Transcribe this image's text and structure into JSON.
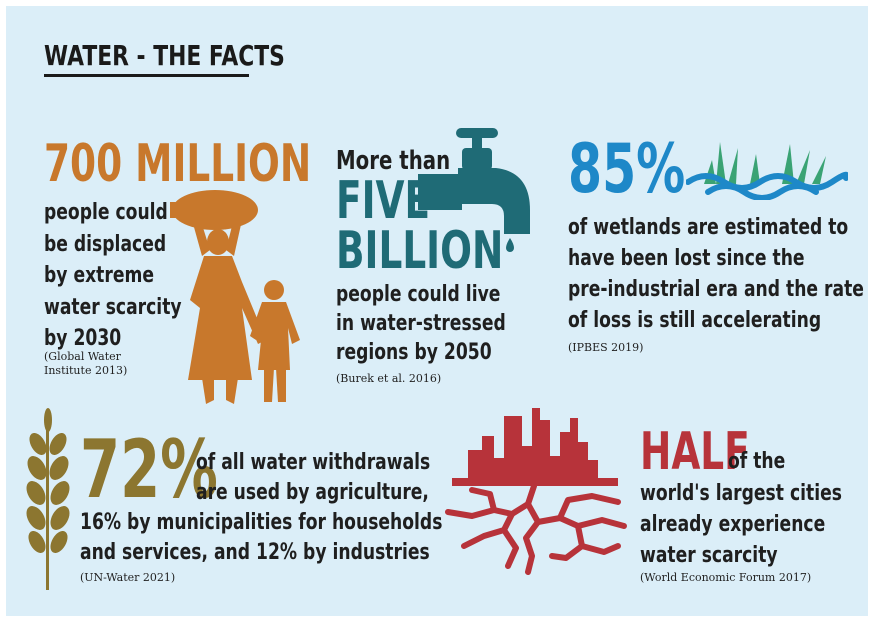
{
  "title": "WATER - THE FACTS",
  "colors": {
    "background": "#dbeef8",
    "orange": "#c8782c",
    "teal": "#1f6b76",
    "blue": "#1e88c8",
    "olive": "#8c7630",
    "red": "#b7333a",
    "text": "#1f1f1f"
  },
  "facts": [
    {
      "headline": "700 MILLION",
      "body": [
        "people could",
        "be displaced",
        "by extreme",
        "water scarcity",
        "by 2030"
      ],
      "source": [
        "(Global Water",
        "Institute 2013)"
      ],
      "icon": "woman-and-child-carrying-water-icon"
    },
    {
      "intro": "More than",
      "headline": [
        "FIVE",
        "BILLION"
      ],
      "body": [
        "people could live",
        "in water-stressed",
        "regions by 2050"
      ],
      "source": "(Burek et al. 2016)",
      "icon": "dripping-tap-icon"
    },
    {
      "headline": "85%",
      "body": [
        "of wetlands are estimated to",
        "have been lost since the",
        "pre-industrial era and the rate",
        "of loss is still accelerating"
      ],
      "source": "(IPBES 2019)",
      "icon": "wetland-grass-and-water-icon"
    },
    {
      "headline": "72%",
      "body": [
        "of all water withdrawals",
        "are used by agriculture,",
        "16% by municipalities for households",
        "and services, and 12% by industries"
      ],
      "source": "(UN-Water 2021)",
      "icon": "wheat-ear-icon"
    },
    {
      "headline": "HALF",
      "body": [
        "of the",
        "world's largest cities",
        "already experience",
        "water scarcity"
      ],
      "source": "(World Economic Forum 2017)",
      "icon": "city-on-cracked-earth-icon"
    }
  ]
}
